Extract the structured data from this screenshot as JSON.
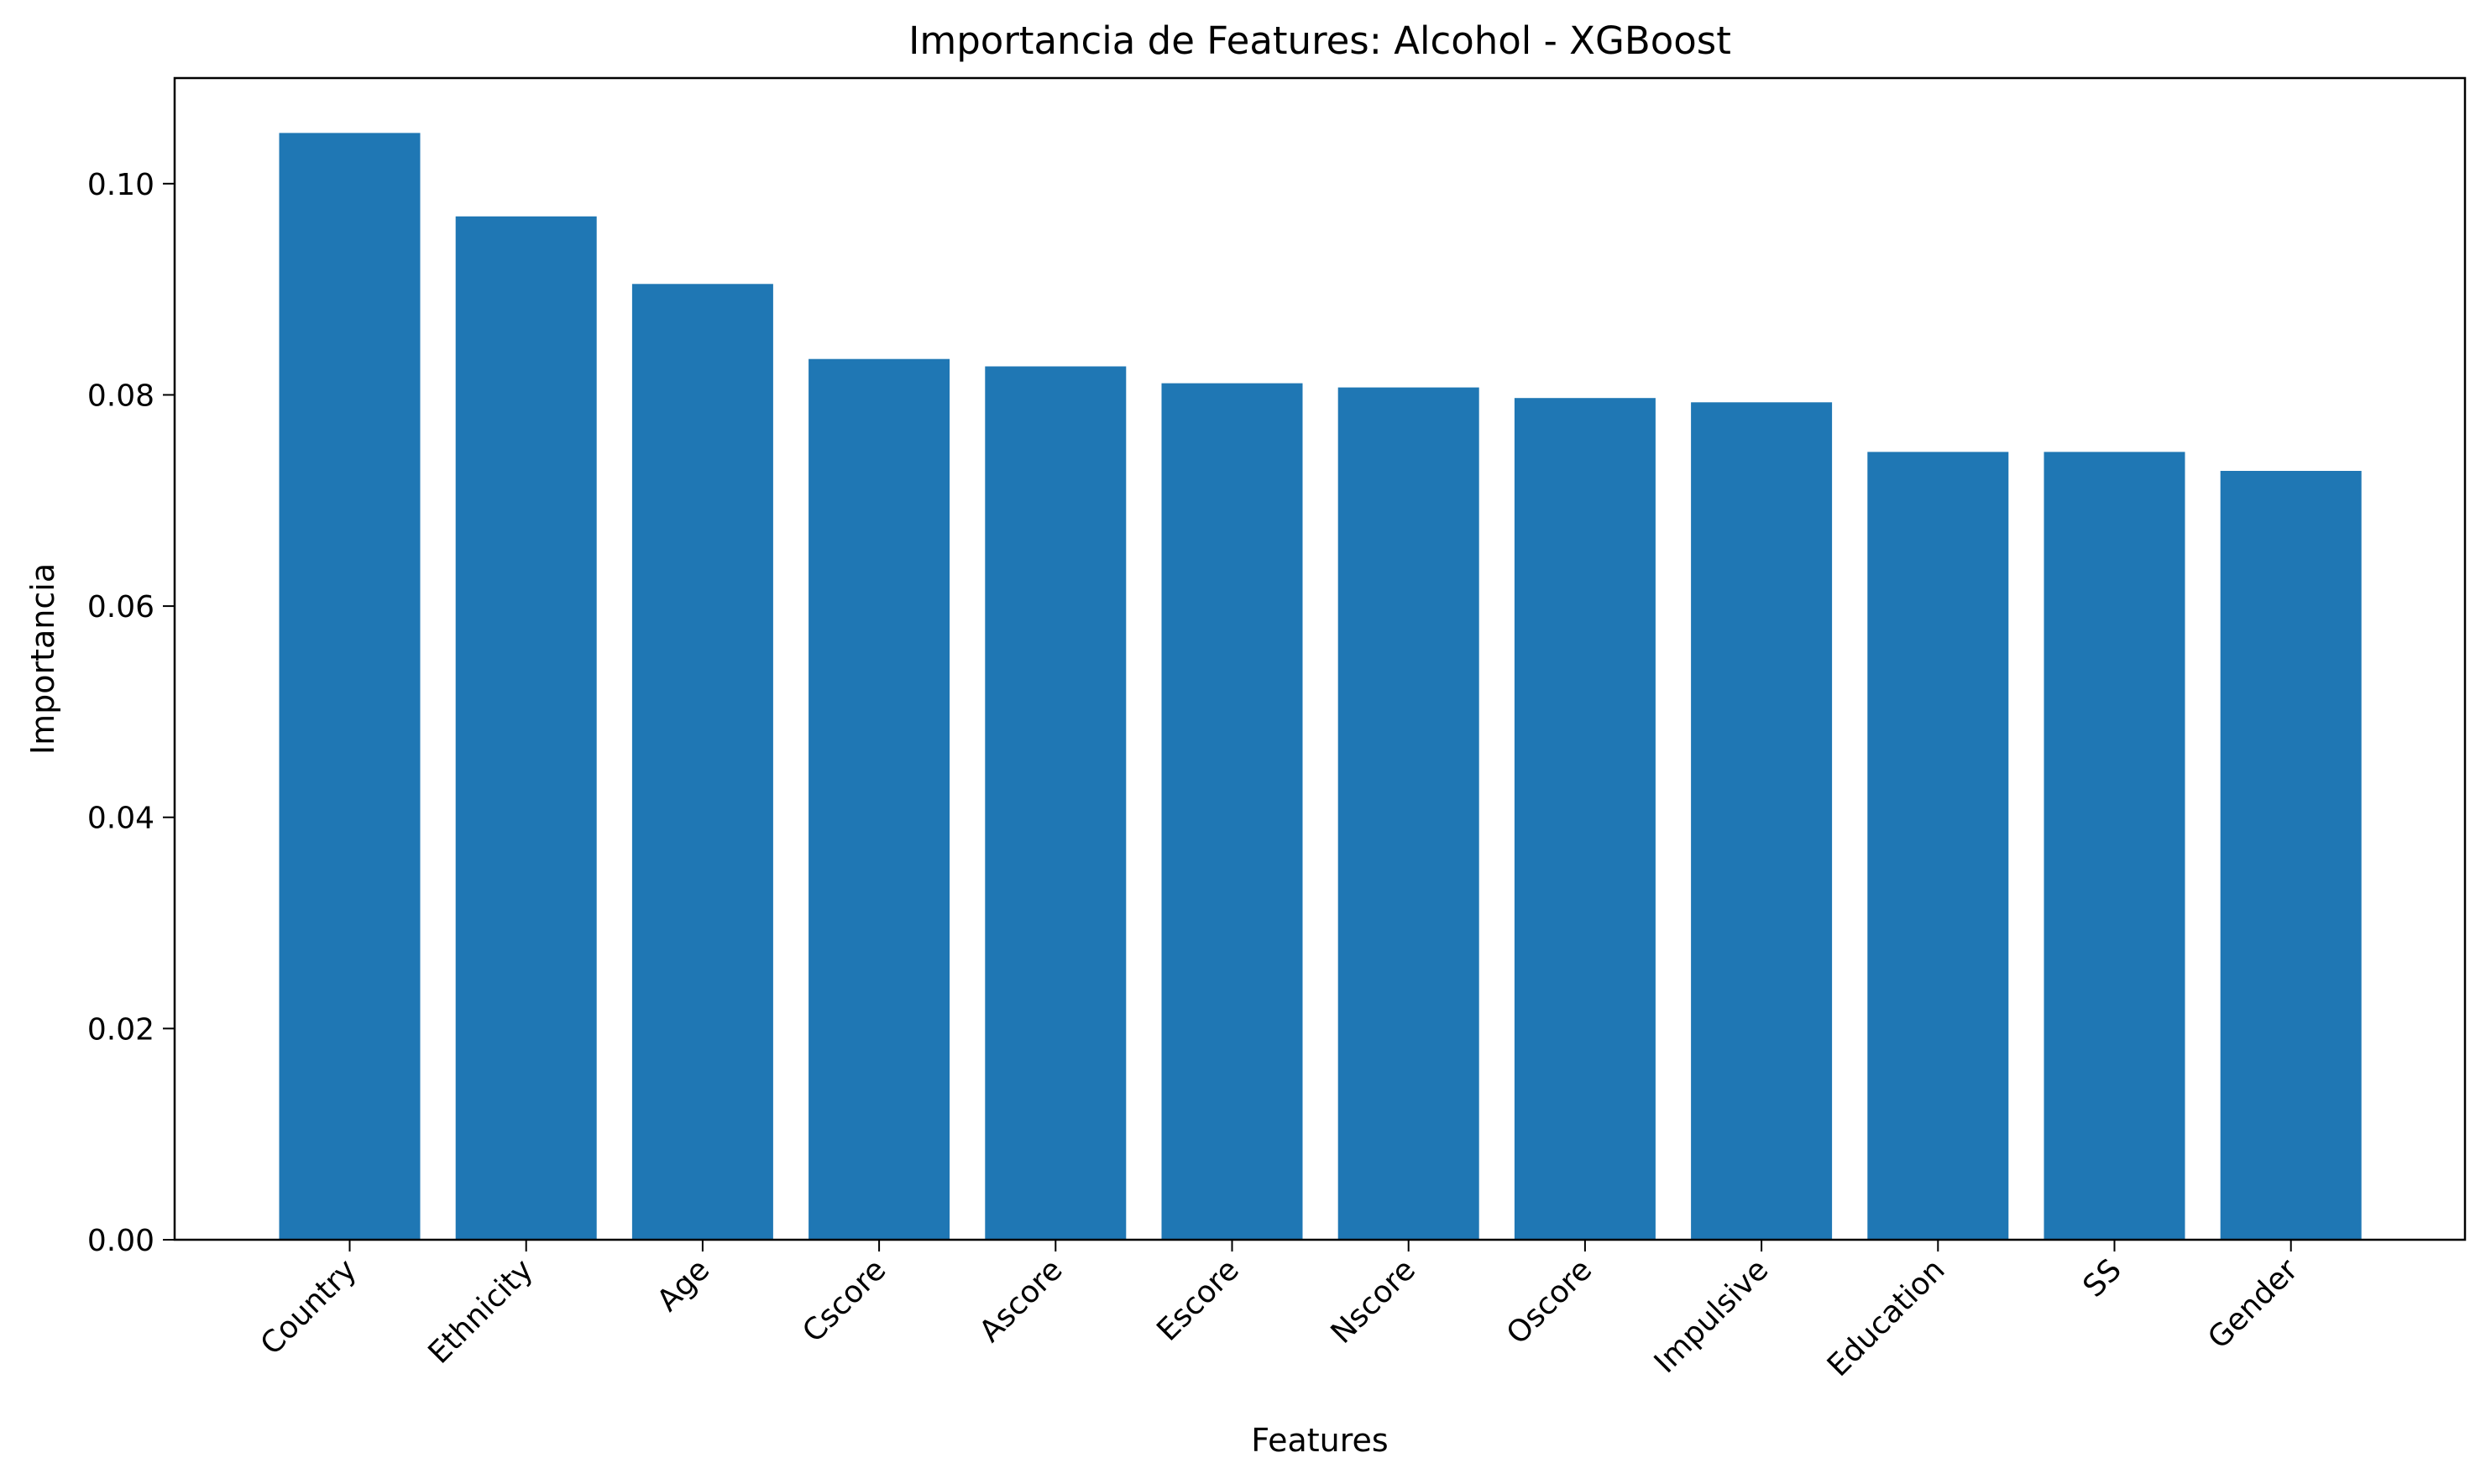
{
  "chart_data": {
    "type": "bar",
    "title": "Importancia de Features: Alcohol - XGBoost",
    "xlabel": "Features",
    "ylabel": "Importancia",
    "categories": [
      "Country",
      "Ethnicity",
      "Age",
      "Cscore",
      "Ascore",
      "Escore",
      "Nscore",
      "Oscore",
      "Impulsive",
      "Education",
      "SS",
      "Gender"
    ],
    "values": [
      0.1048,
      0.0969,
      0.0905,
      0.0834,
      0.0827,
      0.0811,
      0.0807,
      0.0797,
      0.0793,
      0.0746,
      0.0746,
      0.0728
    ],
    "ylim": [
      0,
      0.11
    ],
    "yticks": [
      0.0,
      0.02,
      0.04,
      0.06,
      0.08,
      0.1
    ],
    "ytick_labels": [
      "0.00",
      "0.02",
      "0.04",
      "0.06",
      "0.08",
      "0.10"
    ],
    "bar_color": "#1f77b4",
    "grid": false,
    "legend": "none"
  }
}
